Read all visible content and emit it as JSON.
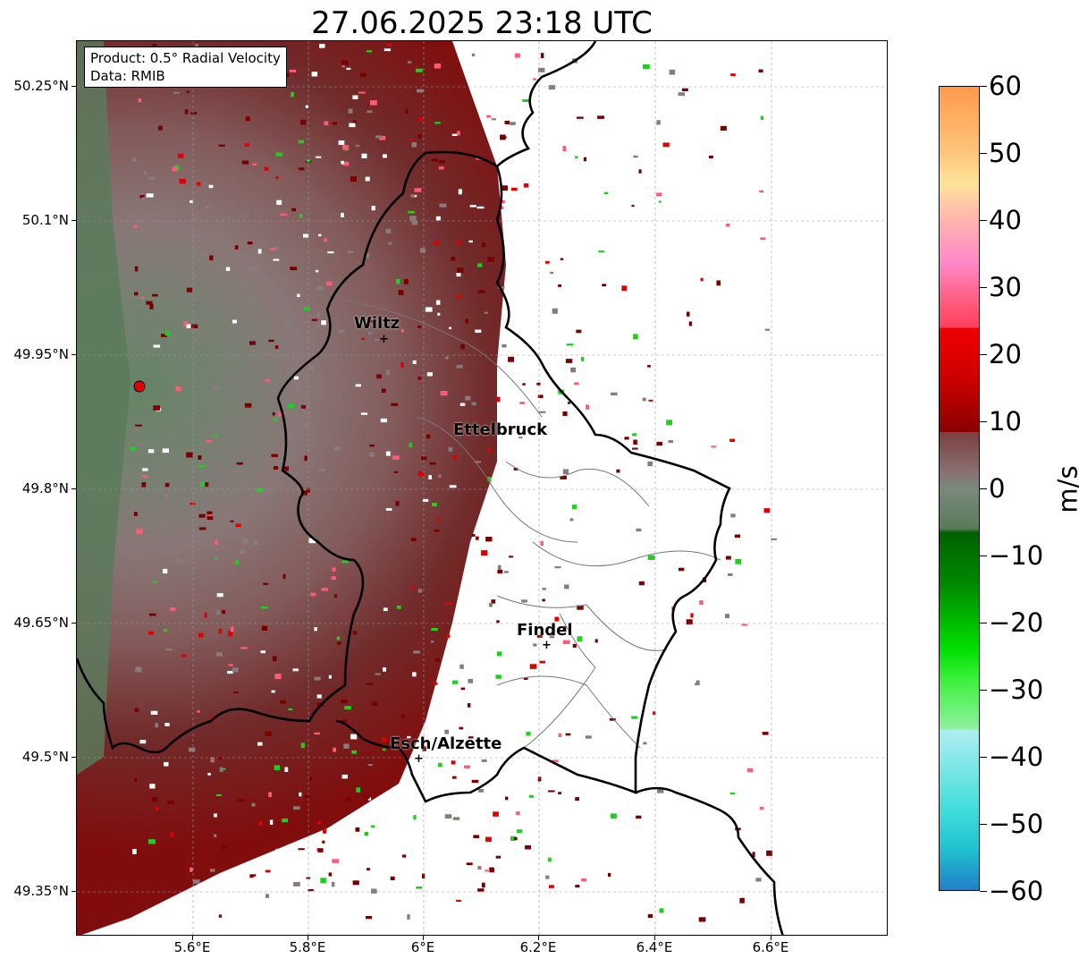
{
  "title": "27.06.2025 23:18 UTC",
  "info_box": {
    "product": "Product: 0.5° Radial Velocity",
    "data": "Data: RMIB"
  },
  "lat_ticks": [
    "50.25°N",
    "50.1°N",
    "49.95°N",
    "49.8°N",
    "49.65°N",
    "49.5°N",
    "49.35°N"
  ],
  "lon_ticks": [
    "5.6°E",
    "5.8°E",
    "6°E",
    "6.2°E",
    "6.4°E",
    "6.6°E"
  ],
  "colorbar": {
    "label": "m/s",
    "ticks": [
      "60",
      "50",
      "40",
      "30",
      "20",
      "10",
      "0",
      "−10",
      "−20",
      "−30",
      "−40",
      "−50",
      "−60"
    ],
    "range": [
      -60,
      60
    ]
  },
  "cities": [
    {
      "name": "Wiltz"
    },
    {
      "name": "Ettelbruck"
    },
    {
      "name": "Findel"
    },
    {
      "name": "Esch/Alzette"
    }
  ],
  "radar_site_color": "#e00000",
  "colors": {
    "outbound_dark": "#7a0000",
    "outbound_red": "#e00000",
    "outbound_pink": "#ff5a78",
    "near_zero": "#8a7a7a",
    "inbound_green": "#1ecf1e",
    "inbound_dark_green": "#006a00"
  }
}
